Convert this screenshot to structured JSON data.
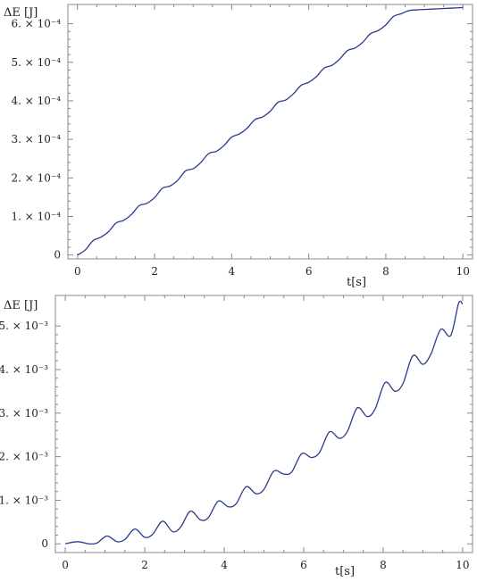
{
  "chart_data": [
    {
      "type": "line",
      "ylabel": "ΔE [J]",
      "xlabel": "t[s]",
      "xlim": [
        -0.25,
        10.25
      ],
      "ylim": [
        -1e-05,
        0.00065
      ],
      "x_ticks": [
        0,
        2,
        4,
        6,
        8,
        10
      ],
      "x_tick_labels": [
        "0",
        "2",
        "4",
        "6",
        "8",
        "10"
      ],
      "y_ticks": [
        0,
        0.0001,
        0.0002,
        0.0003,
        0.0004,
        0.0005,
        0.0006
      ],
      "y_tick_labels": [
        "0",
        "1. × 10⁻⁴",
        "2. × 10⁻⁴",
        "3. × 10⁻⁴",
        "4. × 10⁻⁴",
        "5. × 10⁻⁴",
        "6. × 10⁻⁴"
      ],
      "grid": false,
      "series": [
        {
          "color": "#2b3a8c",
          "x": [
            0,
            0.2,
            0.4,
            0.6,
            0.8,
            1.0,
            1.2,
            1.4,
            1.6,
            1.8,
            2.0,
            2.2,
            2.4,
            2.6,
            2.8,
            3.0,
            3.2,
            3.4,
            3.6,
            3.8,
            4.0,
            4.2,
            4.4,
            4.6,
            4.8,
            5.0,
            5.2,
            5.4,
            5.6,
            5.8,
            6.0,
            6.2,
            6.4,
            6.6,
            6.8,
            7.0,
            7.2,
            7.4,
            7.6,
            7.8,
            8.0,
            8.2,
            8.4,
            8.6,
            8.8,
            9.0,
            9.2,
            9.4,
            9.6,
            9.8,
            10.0
          ],
          "y": [
            0,
            1.3e-05,
            3.7e-05,
            4.6e-05,
            6e-05,
            8.3e-05,
            9e-05,
            0.000105,
            0.000128,
            0.000134,
            0.000149,
            0.000173,
            0.000179,
            0.000194,
            0.000218,
            0.000224,
            0.00024,
            0.000263,
            0.000269,
            0.000284,
            0.000306,
            0.000314,
            0.000329,
            0.000351,
            0.000358,
            0.000373,
            0.000396,
            0.000402,
            0.000418,
            0.00044,
            0.000448,
            0.000463,
            0.000485,
            0.000492,
            0.000508,
            0.00053,
            0.000537,
            0.000552,
            0.000574,
            0.000582,
            0.000597,
            0.000619,
            0.000626,
            0.000634,
            0.000636,
            0.000637,
            0.000638,
            0.000639,
            0.00064,
            0.000641,
            0.000642
          ]
        }
      ]
    },
    {
      "type": "line",
      "ylabel": "ΔE [J]",
      "xlabel": "t[s]",
      "xlim": [
        -0.25,
        10.25
      ],
      "ylim": [
        -0.0002,
        0.0057
      ],
      "x_ticks": [
        0,
        2,
        4,
        6,
        8,
        10
      ],
      "x_tick_labels": [
        "0",
        "2",
        "4",
        "6",
        "8",
        "10"
      ],
      "y_ticks": [
        0,
        0.001,
        0.002,
        0.003,
        0.004,
        0.005
      ],
      "y_tick_labels": [
        "0",
        "1. × 10⁻³",
        "2. × 10⁻³",
        "3. × 10⁻³",
        "4. × 10⁻³",
        "5. × 10⁻³"
      ],
      "grid": false,
      "series": [
        {
          "color": "#2b3a8c",
          "x": [
            0,
            0.3,
            0.6,
            0.8,
            1.05,
            1.3,
            1.5,
            1.75,
            2.0,
            2.2,
            2.45,
            2.7,
            2.9,
            3.15,
            3.4,
            3.6,
            3.85,
            4.1,
            4.3,
            4.55,
            4.8,
            5.0,
            5.25,
            5.5,
            5.7,
            5.95,
            6.2,
            6.4,
            6.65,
            6.9,
            7.1,
            7.35,
            7.6,
            7.8,
            8.05,
            8.3,
            8.5,
            8.75,
            9.0,
            9.2,
            9.45,
            9.7,
            9.9,
            10.0
          ],
          "y": [
            0,
            5e-05,
            0.0,
            2e-05,
            0.00018,
            5e-05,
            0.0001,
            0.00034,
            0.00015,
            0.00022,
            0.00052,
            0.00028,
            0.00038,
            0.00075,
            0.00055,
            0.0006,
            0.00098,
            0.00085,
            0.00092,
            0.00131,
            0.00115,
            0.00125,
            0.00167,
            0.0016,
            0.00165,
            0.00207,
            0.00198,
            0.0021,
            0.00257,
            0.00242,
            0.00258,
            0.00312,
            0.00292,
            0.0031,
            0.0037,
            0.0035,
            0.00368,
            0.00432,
            0.00412,
            0.00435,
            0.00492,
            0.00478,
            0.00552,
            0.0055
          ]
        }
      ]
    }
  ]
}
